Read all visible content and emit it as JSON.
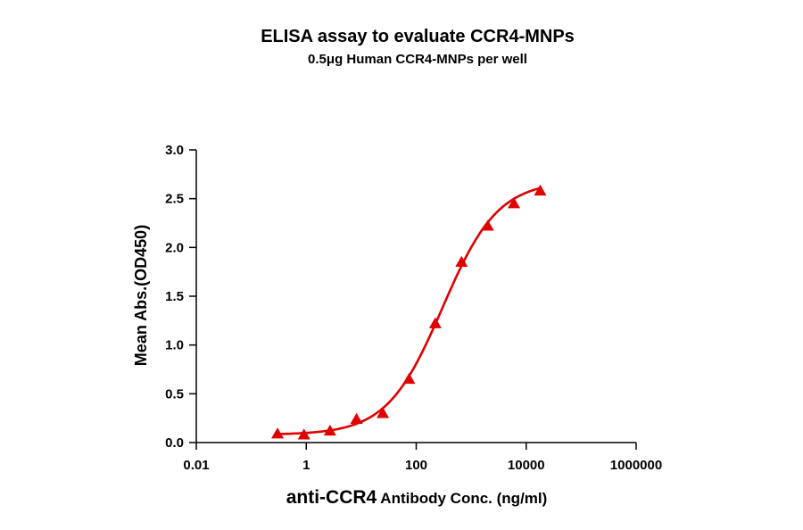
{
  "chart_data": {
    "type": "scatter",
    "title": "ELISA assay to evaluate CCR4-MNPs",
    "subtitle": "0.5μg Human CCR4-MNPs per well",
    "xlabel": {
      "main": "anti-CCR4",
      "rest": " Antibody Conc. (ng/ml)"
    },
    "ylabel": "Mean Abs.(OD450)",
    "x_scale": "log",
    "xlim": [
      0.01,
      1000000
    ],
    "ylim": [
      0,
      3.0
    ],
    "x_ticks": [
      {
        "value": 0.01,
        "label": "0.01"
      },
      {
        "value": 1,
        "label": "1"
      },
      {
        "value": 100,
        "label": "100"
      },
      {
        "value": 10000,
        "label": "10000"
      },
      {
        "value": 1000000,
        "label": "1000000"
      }
    ],
    "y_ticks": [
      {
        "value": 0.0,
        "label": "0.0"
      },
      {
        "value": 0.5,
        "label": "0.5"
      },
      {
        "value": 1.0,
        "label": "1.0"
      },
      {
        "value": 1.5,
        "label": "1.5"
      },
      {
        "value": 2.0,
        "label": "2.0"
      },
      {
        "value": 2.5,
        "label": "2.5"
      },
      {
        "value": 3.0,
        "label": "3.0"
      }
    ],
    "grid": false,
    "series": [
      {
        "marker": "triangle",
        "color": "#e00000",
        "fit": "4PL",
        "x": [
          0.3,
          0.91,
          2.7,
          8.2,
          24.7,
          74,
          222,
          667,
          2000,
          6000,
          18000
        ],
        "y": [
          0.09,
          0.08,
          0.12,
          0.24,
          0.3,
          0.65,
          1.22,
          1.85,
          2.22,
          2.45,
          2.58
        ]
      }
    ]
  }
}
